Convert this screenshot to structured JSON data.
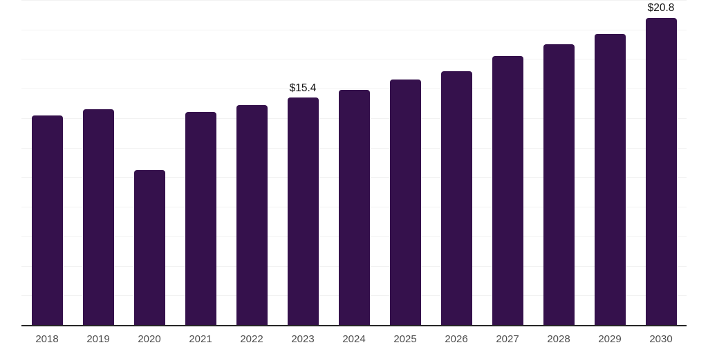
{
  "chart_data": {
    "type": "bar",
    "title": "",
    "xlabel": "",
    "ylabel": "",
    "categories": [
      "2018",
      "2019",
      "2020",
      "2021",
      "2022",
      "2023",
      "2024",
      "2025",
      "2026",
      "2027",
      "2028",
      "2029",
      "2030"
    ],
    "values": [
      14.2,
      14.6,
      10.5,
      14.4,
      14.9,
      15.4,
      15.9,
      16.6,
      17.2,
      18.2,
      19.0,
      19.7,
      20.8
    ],
    "value_labels": {
      "2023": "$15.4",
      "2030": "$20.8"
    },
    "ylim": [
      0,
      22
    ],
    "gridline_step": 2,
    "grid": true,
    "legend": "none",
    "colors": {
      "bar": "#35114C",
      "axis_line": "#262626",
      "gridline": "#f2f2f2",
      "tick_label": "#4d4d4d",
      "value_label": "#111111"
    }
  }
}
